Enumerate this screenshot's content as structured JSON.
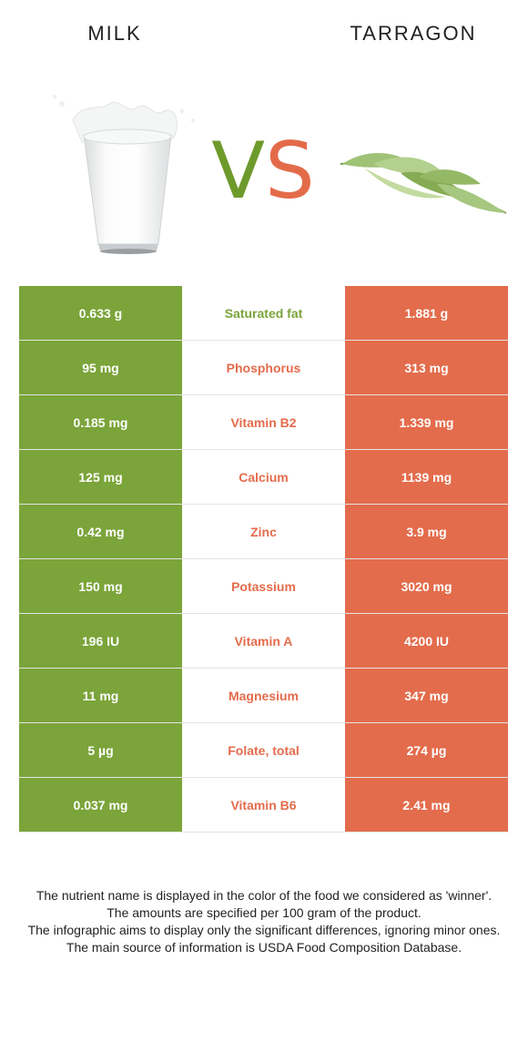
{
  "header": {
    "left_food": "MILK",
    "right_food": "TARRAGON",
    "vs": {
      "v": "V",
      "s": "S"
    }
  },
  "colors": {
    "left_food": "#7ba43a",
    "right_food": "#e36c4c",
    "vs_v": "#6e9a2c",
    "vs_s": "#e36b4a"
  },
  "images": {
    "left": "milk-glass-image",
    "right": "tarragon-sprig-image"
  },
  "rows": [
    {
      "nutrient": "Saturated fat",
      "left": "0.633 g",
      "right": "1.881 g",
      "winner": "left"
    },
    {
      "nutrient": "Phosphorus",
      "left": "95 mg",
      "right": "313 mg",
      "winner": "right"
    },
    {
      "nutrient": "Vitamin B2",
      "left": "0.185 mg",
      "right": "1.339 mg",
      "winner": "right"
    },
    {
      "nutrient": "Calcium",
      "left": "125 mg",
      "right": "1139 mg",
      "winner": "right"
    },
    {
      "nutrient": "Zinc",
      "left": "0.42 mg",
      "right": "3.9 mg",
      "winner": "right"
    },
    {
      "nutrient": "Potassium",
      "left": "150 mg",
      "right": "3020 mg",
      "winner": "right"
    },
    {
      "nutrient": "Vitamin A",
      "left": "196 IU",
      "right": "4200 IU",
      "winner": "right"
    },
    {
      "nutrient": "Magnesium",
      "left": "11 mg",
      "right": "347 mg",
      "winner": "right"
    },
    {
      "nutrient": "Folate, total",
      "left": "5 µg",
      "right": "274 µg",
      "winner": "right"
    },
    {
      "nutrient": "Vitamin B6",
      "left": "0.037 mg",
      "right": "2.41 mg",
      "winner": "right"
    }
  ],
  "footnote": [
    "The nutrient name is displayed in the color of the food we considered as 'winner'.",
    "The amounts are specified per 100 gram of the product.",
    "The infographic aims to display only the significant differences, ignoring minor ones.",
    "The main source of information is USDA Food Composition Database."
  ]
}
